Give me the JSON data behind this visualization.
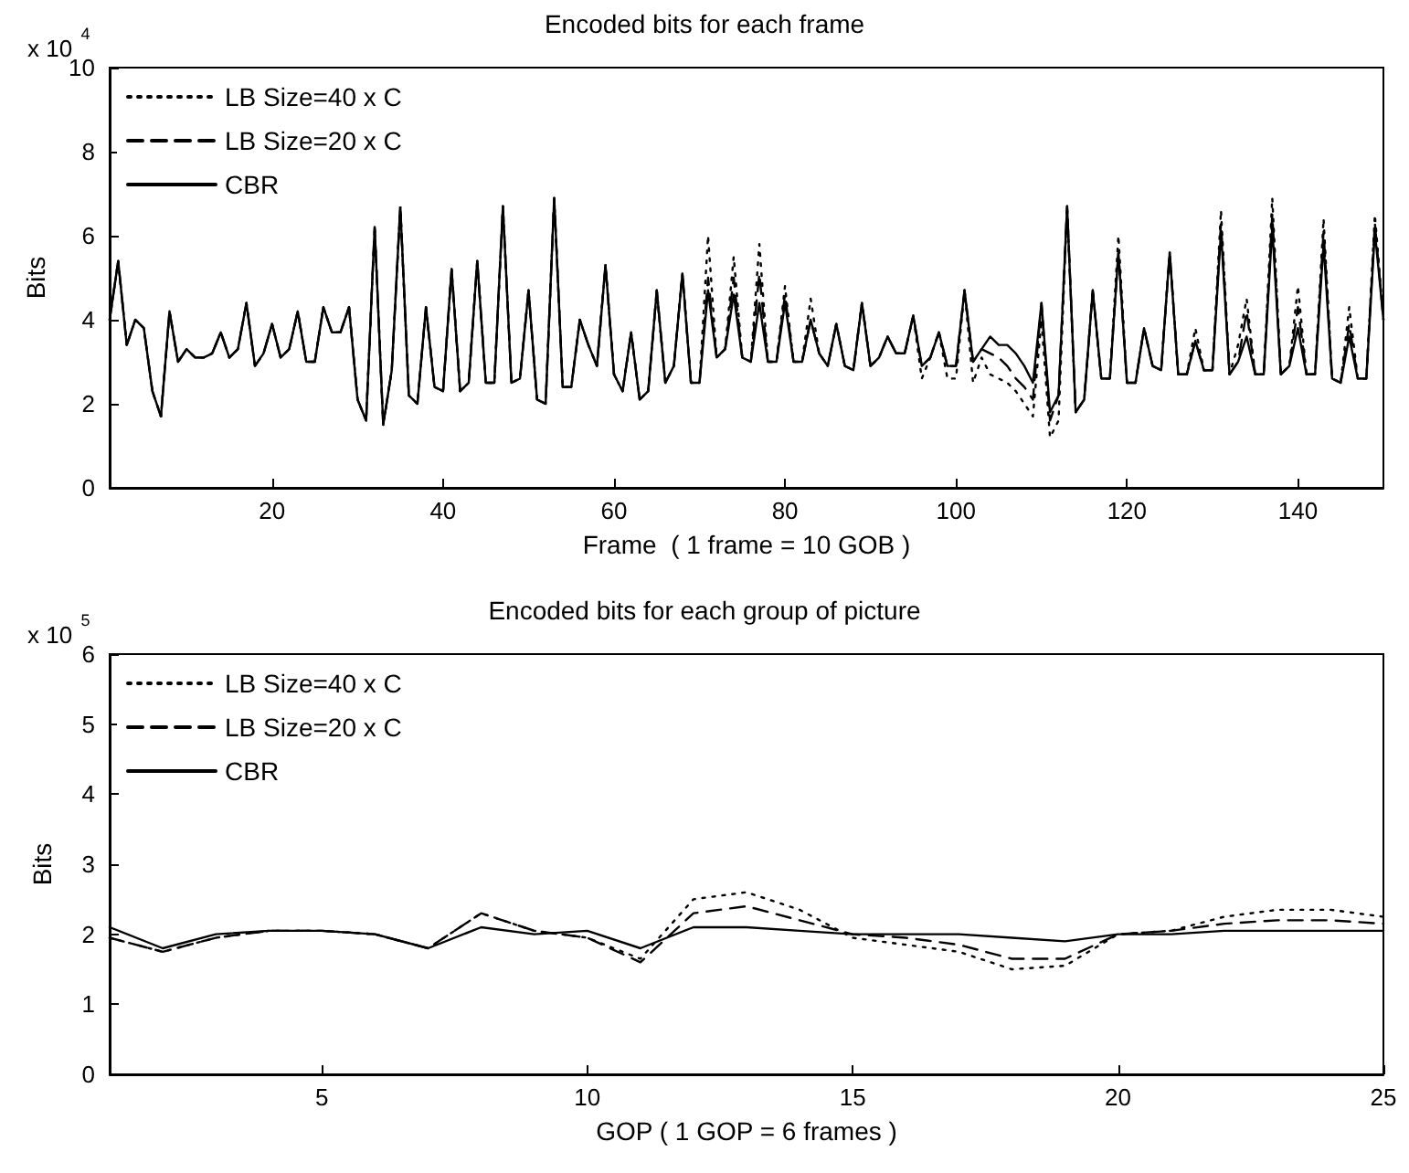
{
  "chart_data": [
    {
      "type": "line",
      "title": "Encoded bits for each frame",
      "xlabel": "Frame  ( 1 frame = 10 GOB )",
      "ylabel": "Bits",
      "annotations": [
        "x 10$^{4}$"
      ],
      "x": [
        1,
        2,
        3,
        4,
        5,
        6,
        7,
        8,
        9,
        10,
        11,
        12,
        13,
        14,
        15,
        16,
        17,
        18,
        19,
        20,
        21,
        22,
        23,
        24,
        25,
        26,
        27,
        28,
        29,
        30,
        31,
        32,
        33,
        34,
        35,
        36,
        37,
        38,
        39,
        40,
        41,
        42,
        43,
        44,
        45,
        46,
        47,
        48,
        49,
        50,
        51,
        52,
        53,
        54,
        55,
        56,
        57,
        58,
        59,
        60,
        61,
        62,
        63,
        64,
        65,
        66,
        67,
        68,
        69,
        70,
        71,
        72,
        73,
        74,
        75,
        76,
        77,
        78,
        79,
        80,
        81,
        82,
        83,
        84,
        85,
        86,
        87,
        88,
        89,
        90,
        91,
        92,
        93,
        94,
        95,
        96,
        97,
        98,
        99,
        100,
        101,
        102,
        103,
        104,
        105,
        106,
        107,
        108,
        109,
        110,
        111,
        112,
        113,
        114,
        115,
        116,
        117,
        118,
        119,
        120,
        121,
        122,
        123,
        124,
        125,
        126,
        127,
        128,
        129,
        130,
        131,
        132,
        133,
        134,
        135,
        136,
        137,
        138,
        139,
        140,
        141,
        142,
        143,
        144,
        145,
        146,
        147,
        148,
        149,
        150
      ],
      "xlim": [
        1,
        150
      ],
      "xticks": [
        20,
        40,
        60,
        80,
        100,
        120,
        140
      ],
      "ylim": [
        0,
        10
      ],
      "yticks": [
        0,
        2,
        4,
        6,
        8,
        10
      ],
      "legend": "top left",
      "marker": "none",
      "series": [
        {
          "name": "LB Size=40 x C",
          "color": "#000000",
          "line_style": "dotted",
          "values": [
            4.0,
            5.4,
            3.4,
            4.0,
            3.8,
            2.3,
            1.7,
            4.2,
            3.0,
            3.3,
            3.1,
            3.1,
            3.2,
            3.7,
            3.1,
            3.3,
            4.4,
            2.9,
            3.2,
            3.9,
            3.1,
            3.3,
            4.2,
            3.0,
            3.0,
            4.3,
            3.7,
            3.7,
            4.3,
            2.1,
            1.6,
            6.2,
            1.5,
            2.8,
            6.7,
            2.2,
            2.0,
            4.3,
            2.4,
            2.3,
            5.2,
            2.3,
            2.5,
            5.4,
            2.5,
            2.5,
            6.7,
            2.5,
            2.6,
            4.7,
            2.1,
            2.0,
            6.9,
            2.4,
            2.4,
            4.0,
            3.4,
            2.9,
            5.3,
            2.7,
            2.3,
            3.7,
            2.1,
            2.3,
            4.7,
            2.5,
            2.9,
            5.1,
            2.5,
            2.5,
            6.0,
            3.1,
            3.3,
            5.5,
            3.1,
            3.0,
            5.8,
            3.0,
            3.0,
            4.8,
            3.0,
            3.0,
            4.5,
            3.2,
            2.9,
            3.9,
            2.9,
            2.8,
            4.4,
            2.9,
            3.1,
            3.6,
            3.2,
            3.2,
            4.1,
            2.6,
            3.1,
            3.7,
            2.6,
            2.6,
            4.7,
            2.5,
            3.1,
            2.7,
            2.6,
            2.5,
            2.3,
            2.0,
            1.7,
            4.0,
            1.2,
            1.6,
            6.7,
            1.8,
            2.1,
            4.7,
            2.6,
            2.6,
            6.0,
            2.5,
            2.5,
            3.8,
            2.9,
            2.8,
            5.6,
            2.7,
            2.7,
            3.8,
            2.8,
            2.8,
            6.6,
            2.7,
            3.4,
            4.5,
            2.7,
            2.7,
            6.9,
            2.7,
            2.9,
            4.8,
            2.7,
            2.7,
            6.4,
            2.6,
            2.5,
            4.3,
            2.6,
            2.6,
            6.5,
            4.0
          ]
        },
        {
          "name": "LB Size=20 x C",
          "color": "#000000",
          "line_style": "dashed",
          "values": [
            4.0,
            5.4,
            3.4,
            4.0,
            3.8,
            2.3,
            1.7,
            4.2,
            3.0,
            3.3,
            3.1,
            3.1,
            3.2,
            3.7,
            3.1,
            3.3,
            4.4,
            2.9,
            3.2,
            3.9,
            3.1,
            3.3,
            4.2,
            3.0,
            3.0,
            4.3,
            3.7,
            3.7,
            4.3,
            2.1,
            1.6,
            6.2,
            1.5,
            2.8,
            6.7,
            2.2,
            2.0,
            4.3,
            2.4,
            2.3,
            5.2,
            2.3,
            2.5,
            5.4,
            2.5,
            2.5,
            6.7,
            2.5,
            2.6,
            4.7,
            2.1,
            2.0,
            6.9,
            2.4,
            2.4,
            4.0,
            3.4,
            2.9,
            5.3,
            2.7,
            2.3,
            3.7,
            2.1,
            2.3,
            4.7,
            2.5,
            2.9,
            5.1,
            2.5,
            2.5,
            5.0,
            3.1,
            3.3,
            5.0,
            3.1,
            3.0,
            5.1,
            3.0,
            3.0,
            4.6,
            3.0,
            3.0,
            4.0,
            3.2,
            2.9,
            3.9,
            2.9,
            2.8,
            4.4,
            2.9,
            3.1,
            3.6,
            3.2,
            3.2,
            4.1,
            2.9,
            3.1,
            3.7,
            2.9,
            2.9,
            4.7,
            3.0,
            3.3,
            3.2,
            3.1,
            2.9,
            2.6,
            2.4,
            2.1,
            4.4,
            1.6,
            2.2,
            6.7,
            1.8,
            2.1,
            4.7,
            2.6,
            2.6,
            5.6,
            2.5,
            2.5,
            3.8,
            2.9,
            2.8,
            5.6,
            2.7,
            2.7,
            3.5,
            2.8,
            2.8,
            6.3,
            2.7,
            3.0,
            4.2,
            2.7,
            2.7,
            6.5,
            2.7,
            2.9,
            4.3,
            2.7,
            2.7,
            6.1,
            2.6,
            2.5,
            3.9,
            2.6,
            2.6,
            6.3,
            4.0
          ]
        },
        {
          "name": "CBR",
          "color": "#000000",
          "line_style": "solid",
          "values": [
            4.0,
            5.4,
            3.4,
            4.0,
            3.8,
            2.3,
            1.7,
            4.2,
            3.0,
            3.3,
            3.1,
            3.1,
            3.2,
            3.7,
            3.1,
            3.3,
            4.4,
            2.9,
            3.2,
            3.9,
            3.1,
            3.3,
            4.2,
            3.0,
            3.0,
            4.3,
            3.7,
            3.7,
            4.3,
            2.1,
            1.6,
            6.2,
            1.5,
            2.8,
            6.7,
            2.2,
            2.0,
            4.3,
            2.4,
            2.3,
            5.2,
            2.3,
            2.5,
            5.4,
            2.5,
            2.5,
            6.7,
            2.5,
            2.6,
            4.7,
            2.1,
            2.0,
            6.9,
            2.4,
            2.4,
            4.0,
            3.4,
            2.9,
            5.3,
            2.7,
            2.3,
            3.7,
            2.1,
            2.3,
            4.7,
            2.5,
            2.9,
            5.1,
            2.5,
            2.5,
            4.7,
            3.1,
            3.3,
            4.6,
            3.1,
            3.0,
            4.4,
            3.0,
            3.0,
            4.4,
            3.0,
            3.0,
            4.0,
            3.2,
            2.9,
            3.9,
            2.9,
            2.8,
            4.4,
            2.9,
            3.1,
            3.6,
            3.2,
            3.2,
            4.1,
            2.9,
            3.1,
            3.7,
            2.9,
            2.9,
            4.7,
            3.0,
            3.3,
            3.6,
            3.4,
            3.4,
            3.2,
            2.9,
            2.5,
            4.4,
            1.8,
            2.2,
            6.7,
            1.8,
            2.1,
            4.7,
            2.6,
            2.6,
            5.6,
            2.5,
            2.5,
            3.8,
            2.9,
            2.8,
            5.6,
            2.7,
            2.7,
            3.5,
            2.8,
            2.8,
            6.1,
            2.7,
            3.0,
            3.6,
            2.7,
            2.7,
            6.2,
            2.7,
            2.9,
            3.8,
            2.7,
            2.7,
            5.8,
            2.6,
            2.5,
            3.6,
            2.6,
            2.6,
            6.1,
            4.0
          ]
        }
      ]
    },
    {
      "type": "line",
      "title": "Encoded bits for each group of picture",
      "xlabel": "GOP ( 1 GOP = 6 frames )",
      "ylabel": "Bits",
      "annotations": [
        "x 10$^{5}$"
      ],
      "x": [
        1,
        2,
        3,
        4,
        5,
        6,
        7,
        8,
        9,
        10,
        11,
        12,
        13,
        14,
        15,
        16,
        17,
        18,
        19,
        20,
        21,
        22,
        23,
        24,
        25
      ],
      "xlim": [
        1,
        25
      ],
      "xticks": [
        5,
        10,
        15,
        20,
        25
      ],
      "ylim": [
        0,
        6
      ],
      "yticks": [
        0,
        1,
        2,
        3,
        4,
        5,
        6
      ],
      "legend": "top left",
      "marker": "none",
      "series": [
        {
          "name": "LB Size=40 x C",
          "color": "#000000",
          "line_style": "dotted",
          "values": [
            1.95,
            1.75,
            1.95,
            2.05,
            2.05,
            2.0,
            1.8,
            2.3,
            2.05,
            1.95,
            1.65,
            2.5,
            2.6,
            2.35,
            1.95,
            1.85,
            1.75,
            1.5,
            1.55,
            2.0,
            2.05,
            2.25,
            2.35,
            2.35,
            2.25
          ]
        },
        {
          "name": "LB Size=20 x C",
          "color": "#000000",
          "line_style": "dashed",
          "values": [
            1.95,
            1.75,
            1.95,
            2.05,
            2.05,
            2.0,
            1.8,
            2.3,
            2.05,
            1.95,
            1.6,
            2.3,
            2.4,
            2.2,
            2.0,
            1.95,
            1.85,
            1.65,
            1.65,
            2.0,
            2.05,
            2.15,
            2.2,
            2.2,
            2.15
          ]
        },
        {
          "name": "CBR",
          "color": "#000000",
          "line_style": "solid",
          "values": [
            2.1,
            1.8,
            2.0,
            2.05,
            2.05,
            2.0,
            1.8,
            2.1,
            2.0,
            2.05,
            1.8,
            2.1,
            2.1,
            2.05,
            2.0,
            2.0,
            2.0,
            1.95,
            1.9,
            2.0,
            2.0,
            2.05,
            2.05,
            2.05,
            2.05
          ]
        }
      ]
    }
  ]
}
